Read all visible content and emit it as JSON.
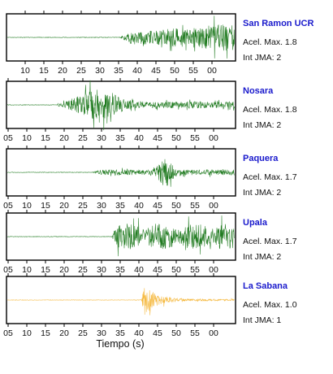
{
  "chart_data": {
    "type": "line",
    "description_units": "seconds within minute",
    "xlabel": "Tiempo (s)",
    "colors": {
      "normal": "#1f7a1f",
      "low": "#f5b83d",
      "station_label": "#1a1acc"
    },
    "panels": [
      {
        "station": "San Ramon UCR",
        "accel_text": "Acel. Max. 1.8",
        "jma_text": "Int JMA: 2",
        "accel": 1.8,
        "jma": 2,
        "color": "#1f7a1f",
        "x_ticks": [
          "10",
          "15",
          "20",
          "25",
          "30",
          "35",
          "40",
          "45",
          "50",
          "55",
          "00"
        ],
        "first_tick_second": 10,
        "onset_second": 35.2,
        "peak_second": 63,
        "amplitude": 0.85,
        "envelope": "rising"
      },
      {
        "station": "Nosara",
        "accel_text": "Acel. Max. 1.8",
        "jma_text": "Int JMA: 2",
        "accel": 1.8,
        "jma": 2,
        "color": "#1f7a1f",
        "x_ticks": [
          "05",
          "10",
          "15",
          "20",
          "25",
          "30",
          "35",
          "40",
          "45",
          "50",
          "55",
          "00"
        ],
        "first_tick_second": 5,
        "onset_second": 18,
        "peak_second": 29,
        "amplitude": 0.9,
        "envelope": "burst"
      },
      {
        "station": "Paquera",
        "accel_text": "Acel. Max. 1.7",
        "jma_text": "Int JMA: 2",
        "accel": 1.7,
        "jma": 2,
        "color": "#1f7a1f",
        "x_ticks": [
          "05",
          "10",
          "15",
          "20",
          "25",
          "30",
          "35",
          "40",
          "45",
          "50",
          "55",
          "00"
        ],
        "first_tick_second": 5,
        "onset_second": 27,
        "peak_second": 47,
        "amplitude": 0.95,
        "envelope": "spike"
      },
      {
        "station": "Upala",
        "accel_text": "Acel. Max. 1.7",
        "jma_text": "Int JMA: 2",
        "accel": 1.7,
        "jma": 2,
        "color": "#1f7a1f",
        "x_ticks": [
          "05",
          "10",
          "15",
          "20",
          "25",
          "30",
          "35",
          "40",
          "45",
          "50",
          "55",
          "00"
        ],
        "first_tick_second": 5,
        "onset_second": 32.5,
        "peak_second": 59,
        "amplitude": 0.85,
        "envelope": "sustained"
      },
      {
        "station": "La Sabana",
        "accel_text": "Acel. Max. 1.0",
        "jma_text": "Int JMA: 1",
        "accel": 1.0,
        "jma": 1,
        "color": "#f5b83d",
        "x_ticks": [
          "05",
          "10",
          "15",
          "20",
          "25",
          "30",
          "35",
          "40",
          "45",
          "50",
          "55",
          "00"
        ],
        "first_tick_second": 5,
        "onset_second": 40.5,
        "peak_second": 41.5,
        "amplitude": 0.98,
        "envelope": "decay"
      }
    ]
  }
}
